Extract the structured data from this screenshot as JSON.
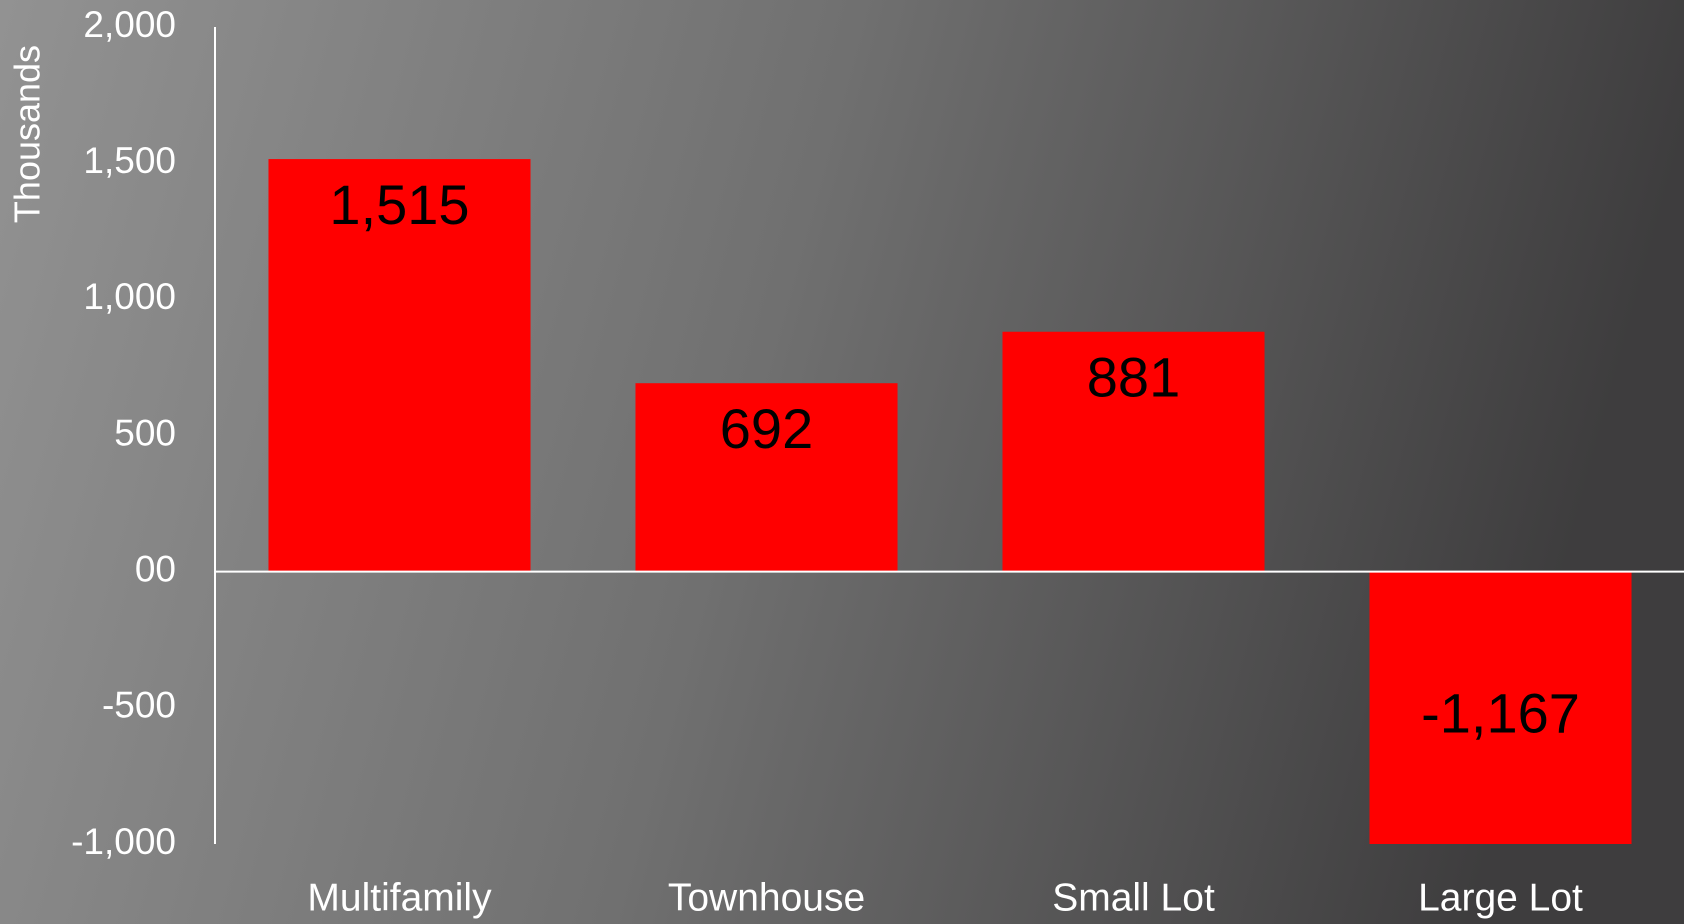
{
  "chart_data": {
    "type": "bar",
    "y_label": "Thousands",
    "categories": [
      "Multifamily",
      "Townhouse",
      "Small Lot",
      "Large Lot"
    ],
    "values": [
      1515,
      692,
      881,
      -1167
    ],
    "value_labels": [
      "1,515",
      "692",
      "881",
      "-1,167"
    ],
    "color": "#ff0000",
    "ylim": [
      -1000,
      2000
    ],
    "yticks": [
      {
        "value": -1000,
        "label": "-1,000"
      },
      -500,
      {
        "value": 0,
        "label": "00"
      },
      500,
      {
        "value": 1000,
        "label": "1,000"
      },
      {
        "value": 1500,
        "label": "1,500"
      },
      {
        "value": 2000,
        "label": "2,000"
      }
    ],
    "grid": false
  }
}
